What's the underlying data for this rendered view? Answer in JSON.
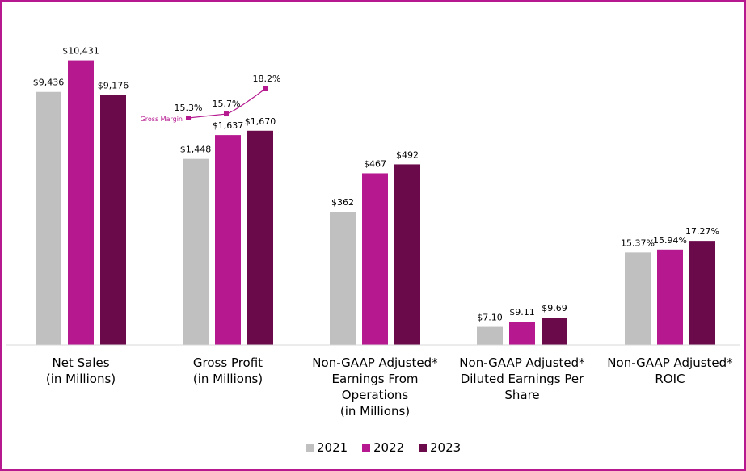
{
  "chart_data": {
    "type": "bar",
    "title": "",
    "xlabel": "",
    "ylabel": "",
    "categories": [
      [
        "Net Sales",
        "(in Millions)"
      ],
      [
        "Gross Profit",
        "(in Millions)"
      ],
      [
        "Non-GAAP Adjusted*",
        "Earnings From",
        "Operations",
        "(in Millions)"
      ],
      [
        "Non-GAAP Adjusted*",
        "Diluted Earnings Per",
        "Share"
      ],
      [
        "Non-GAAP Adjusted*",
        "ROIC"
      ]
    ],
    "series": [
      {
        "name": "2021",
        "color": "#c0c0c0",
        "labels": [
          "$9,436",
          "$1,448",
          "$362",
          "$7.10",
          "15.37%"
        ],
        "display_ratio": [
          0.88,
          0.647,
          0.463,
          0.063,
          0.322
        ]
      },
      {
        "name": "2022",
        "color": "#b5188f",
        "labels": [
          "$10,431",
          "$1,637",
          "$467",
          "$9.11",
          "15.94%"
        ],
        "display_ratio": [
          0.99,
          0.73,
          0.597,
          0.081,
          0.332
        ]
      },
      {
        "name": "2023",
        "color": "#6b0a4a",
        "labels": [
          "$9,176",
          "$1,670",
          "$492",
          "$9.69",
          "17.27%"
        ],
        "display_ratio": [
          0.87,
          0.745,
          0.628,
          0.095,
          0.362
        ]
      }
    ],
    "gross_margin": {
      "tag": "Gross Margin",
      "color": "#b5188f",
      "values": [
        15.3,
        15.7,
        18.2
      ],
      "labels": [
        "15.3%",
        "15.7%",
        "18.2%"
      ]
    },
    "legend": {
      "placement": "bottom-center",
      "entries": [
        "2021",
        "2022",
        "2023"
      ]
    },
    "grid": false
  }
}
